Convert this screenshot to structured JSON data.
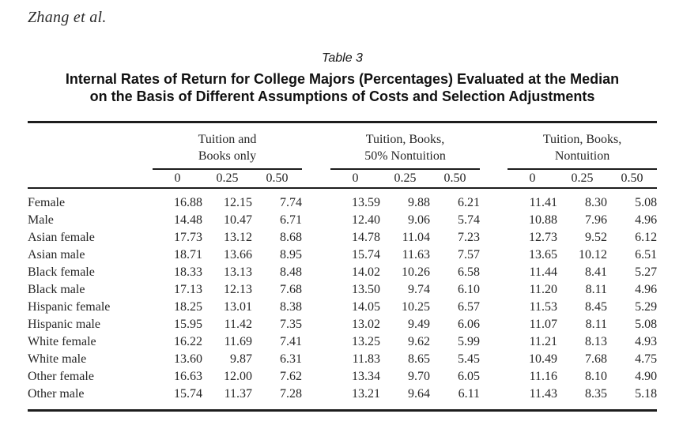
{
  "page": {
    "running_head": "Zhang et al.",
    "table_label": "Table 3",
    "title_line1": "Internal Rates of Return for College Majors (Percentages) Evaluated at the Median",
    "title_line2": "on the Basis of Different Assumptions of Costs and Selection Adjustments"
  },
  "colors": {
    "background": "#ffffff",
    "text": "#262626",
    "title_text": "#111111",
    "rule": "#1d1d1d"
  },
  "chart_data": {
    "type": "table",
    "title": "Internal Rates of Return for College Majors (Percentages) Evaluated at the Median on the Basis of Different Assumptions of Costs and Selection Adjustments",
    "column_groups": [
      {
        "line1": "Tuition and",
        "line2": "Books only",
        "subcolumns": [
          "0",
          "0.25",
          "0.50"
        ]
      },
      {
        "line1": "Tuition, Books,",
        "line2": "50% Nontuition",
        "subcolumns": [
          "0",
          "0.25",
          "0.50"
        ]
      },
      {
        "line1": "Tuition, Books,",
        "line2": "Nontuition",
        "subcolumns": [
          "0",
          "0.25",
          "0.50"
        ]
      }
    ],
    "rows": [
      {
        "label": "Female",
        "values": [
          "16.88",
          "12.15",
          "7.74",
          "13.59",
          "9.88",
          "6.21",
          "11.41",
          "8.30",
          "5.08"
        ]
      },
      {
        "label": "Male",
        "values": [
          "14.48",
          "10.47",
          "6.71",
          "12.40",
          "9.06",
          "5.74",
          "10.88",
          "7.96",
          "4.96"
        ]
      },
      {
        "label": "Asian female",
        "values": [
          "17.73",
          "13.12",
          "8.68",
          "14.78",
          "11.04",
          "7.23",
          "12.73",
          "9.52",
          "6.12"
        ]
      },
      {
        "label": "Asian male",
        "values": [
          "18.71",
          "13.66",
          "8.95",
          "15.74",
          "11.63",
          "7.57",
          "13.65",
          "10.12",
          "6.51"
        ]
      },
      {
        "label": "Black female",
        "values": [
          "18.33",
          "13.13",
          "8.48",
          "14.02",
          "10.26",
          "6.58",
          "11.44",
          "8.41",
          "5.27"
        ]
      },
      {
        "label": "Black male",
        "values": [
          "17.13",
          "12.13",
          "7.68",
          "13.50",
          "9.74",
          "6.10",
          "11.20",
          "8.11",
          "4.96"
        ]
      },
      {
        "label": "Hispanic female",
        "values": [
          "18.25",
          "13.01",
          "8.38",
          "14.05",
          "10.25",
          "6.57",
          "11.53",
          "8.45",
          "5.29"
        ]
      },
      {
        "label": "Hispanic male",
        "values": [
          "15.95",
          "11.42",
          "7.35",
          "13.02",
          "9.49",
          "6.06",
          "11.07",
          "8.11",
          "5.08"
        ]
      },
      {
        "label": "White female",
        "values": [
          "16.22",
          "11.69",
          "7.41",
          "13.25",
          "9.62",
          "5.99",
          "11.21",
          "8.13",
          "4.93"
        ]
      },
      {
        "label": "White male",
        "values": [
          "13.60",
          "9.87",
          "6.31",
          "11.83",
          "8.65",
          "5.45",
          "10.49",
          "7.68",
          "4.75"
        ]
      },
      {
        "label": "Other female",
        "values": [
          "16.63",
          "12.00",
          "7.62",
          "13.34",
          "9.70",
          "6.05",
          "11.16",
          "8.10",
          "4.90"
        ]
      },
      {
        "label": "Other male",
        "values": [
          "15.74",
          "11.37",
          "7.28",
          "13.21",
          "9.64",
          "6.11",
          "11.43",
          "8.35",
          "5.18"
        ]
      }
    ]
  }
}
